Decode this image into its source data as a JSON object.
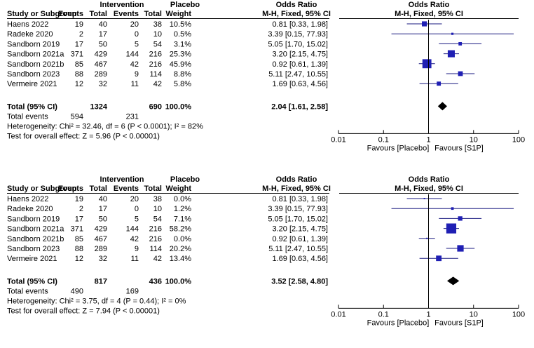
{
  "chart_data": [
    {
      "type": "forest",
      "headers": {
        "intervention": "Intervention",
        "placebo": "Placebo",
        "study": "Study or Subgroup",
        "events": "Events",
        "total": "Total",
        "weight": "Weight",
        "or_title": "Odds Ratio",
        "or_method": "M-H, Fixed, 95% CI",
        "plot_title": "Odds Ratio",
        "plot_method": "M-H, Fixed, 95% CI"
      },
      "studies": [
        {
          "name": "Haens 2022",
          "ie": "19",
          "it": "40",
          "pe": "20",
          "pt": "38",
          "weight": "10.5%",
          "or_text": "0.81 [0.33, 1.98]",
          "or": 0.81,
          "lo": 0.33,
          "hi": 1.98,
          "w": 10.5
        },
        {
          "name": "Radeke 2020",
          "ie": "2",
          "it": "17",
          "pe": "0",
          "pt": "10",
          "weight": "0.5%",
          "or_text": "3.39 [0.15, 77.93]",
          "or": 3.39,
          "lo": 0.15,
          "hi": 77.93,
          "w": 0.5
        },
        {
          "name": "Sandborn 2019",
          "ie": "17",
          "it": "50",
          "pe": "5",
          "pt": "54",
          "weight": "3.1%",
          "or_text": "5.05 [1.70, 15.02]",
          "or": 5.05,
          "lo": 1.7,
          "hi": 15.02,
          "w": 3.1
        },
        {
          "name": "Sandborn 2021a",
          "ie": "371",
          "it": "429",
          "pe": "144",
          "pt": "216",
          "weight": "25.3%",
          "or_text": "3.20 [2.15, 4.75]",
          "or": 3.2,
          "lo": 2.15,
          "hi": 4.75,
          "w": 25.3
        },
        {
          "name": "Sandborn 2021b",
          "ie": "85",
          "it": "467",
          "pe": "42",
          "pt": "216",
          "weight": "45.9%",
          "or_text": "0.92 [0.61, 1.39]",
          "or": 0.92,
          "lo": 0.61,
          "hi": 1.39,
          "w": 45.9
        },
        {
          "name": "Sandborn 2023",
          "ie": "88",
          "it": "289",
          "pe": "9",
          "pt": "114",
          "weight": "8.8%",
          "or_text": "5.11 [2.47, 10.55]",
          "or": 5.11,
          "lo": 2.47,
          "hi": 10.55,
          "w": 8.8
        },
        {
          "name": "Vermeire 2021",
          "ie": "12",
          "it": "32",
          "pe": "11",
          "pt": "42",
          "weight": "5.8%",
          "or_text": "1.69 [0.63, 4.56]",
          "or": 1.69,
          "lo": 0.63,
          "hi": 4.56,
          "w": 5.8
        }
      ],
      "total": {
        "label": "Total (95% CI)",
        "it": "1324",
        "pt": "690",
        "weight": "100.0%",
        "or_text": "2.04 [1.61, 2.58]",
        "or": 2.04,
        "lo": 1.61,
        "hi": 2.58
      },
      "total_events": {
        "label": "Total events",
        "ie": "594",
        "pe": "231"
      },
      "heterogeneity": "Heterogeneity: Chi² = 32.46, df = 6 (P < 0.0001); I² = 82%",
      "overall_effect": "Test for overall effect: Z = 5.96 (P < 0.00001)",
      "axis": {
        "scale": "log",
        "range": [
          0.01,
          100
        ],
        "ticks": [
          "0.01",
          "0.1",
          "1",
          "10",
          "100"
        ],
        "tick_values": [
          0.01,
          0.1,
          1,
          10,
          100
        ]
      },
      "favours_left": "Favours [Placebo]",
      "favours_right": "Favours [S1P]"
    },
    {
      "type": "forest",
      "headers": {
        "intervention": "Intervention",
        "placebo": "Placebo",
        "study": "Study or Subgroup",
        "events": "Events",
        "total": "Total",
        "weight": "Weight",
        "or_title": "Odds Ratio",
        "or_method": "M-H, Fixed, 95% CI",
        "plot_title": "Odds Ratio",
        "plot_method": "M-H, Fixed, 95% CI"
      },
      "studies": [
        {
          "name": "Haens 2022",
          "ie": "19",
          "it": "40",
          "pe": "20",
          "pt": "38",
          "weight": "0.0%",
          "or_text": "0.81 [0.33, 1.98]",
          "or": 0.81,
          "lo": 0.33,
          "hi": 1.98,
          "w": 0.0
        },
        {
          "name": "Radeke 2020",
          "ie": "2",
          "it": "17",
          "pe": "0",
          "pt": "10",
          "weight": "1.2%",
          "or_text": "3.39 [0.15, 77.93]",
          "or": 3.39,
          "lo": 0.15,
          "hi": 77.93,
          "w": 1.2
        },
        {
          "name": "Sandborn 2019",
          "ie": "17",
          "it": "50",
          "pe": "5",
          "pt": "54",
          "weight": "7.1%",
          "or_text": "5.05 [1.70, 15.02]",
          "or": 5.05,
          "lo": 1.7,
          "hi": 15.02,
          "w": 7.1
        },
        {
          "name": "Sandborn 2021a",
          "ie": "371",
          "it": "429",
          "pe": "144",
          "pt": "216",
          "weight": "58.2%",
          "or_text": "3.20 [2.15, 4.75]",
          "or": 3.2,
          "lo": 2.15,
          "hi": 4.75,
          "w": 58.2
        },
        {
          "name": "Sandborn 2021b",
          "ie": "85",
          "it": "467",
          "pe": "42",
          "pt": "216",
          "weight": "0.0%",
          "or_text": "0.92 [0.61, 1.39]",
          "or": 0.92,
          "lo": 0.61,
          "hi": 1.39,
          "w": 0.0
        },
        {
          "name": "Sandborn 2023",
          "ie": "88",
          "it": "289",
          "pe": "9",
          "pt": "114",
          "weight": "20.2%",
          "or_text": "5.11 [2.47, 10.55]",
          "or": 5.11,
          "lo": 2.47,
          "hi": 10.55,
          "w": 20.2
        },
        {
          "name": "Vermeire 2021",
          "ie": "12",
          "it": "32",
          "pe": "11",
          "pt": "42",
          "weight": "13.4%",
          "or_text": "1.69 [0.63, 4.56]",
          "or": 1.69,
          "lo": 0.63,
          "hi": 4.56,
          "w": 13.4
        }
      ],
      "total": {
        "label": "Total (95% CI)",
        "it": "817",
        "pt": "436",
        "weight": "100.0%",
        "or_text": "3.52 [2.58, 4.80]",
        "or": 3.52,
        "lo": 2.58,
        "hi": 4.8
      },
      "total_events": {
        "label": "Total events",
        "ie": "490",
        "pe": "169"
      },
      "heterogeneity": "Heterogeneity: Chi² = 3.75, df = 4 (P = 0.44); I² = 0%",
      "overall_effect": "Test for overall effect: Z = 7.94 (P < 0.00001)",
      "axis": {
        "scale": "log",
        "range": [
          0.01,
          100
        ],
        "ticks": [
          "0.01",
          "0.1",
          "1",
          "10",
          "100"
        ],
        "tick_values": [
          0.01,
          0.1,
          1,
          10,
          100
        ]
      },
      "favours_left": "Favours [Placebo]",
      "favours_right": "Favours [S1P]"
    }
  ],
  "colors": {
    "marker": "#1f1fb4",
    "line": "#1a1a80",
    "diamond": "#000000",
    "rule": "#000000"
  }
}
